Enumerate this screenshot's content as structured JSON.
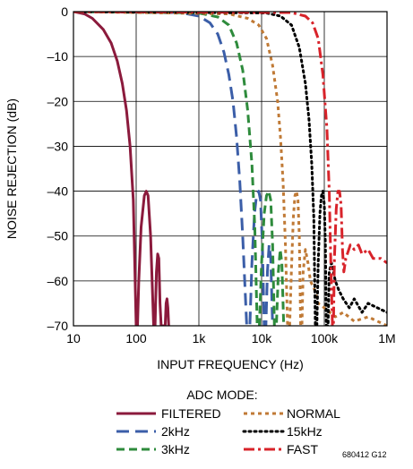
{
  "chart_data": {
    "type": "line",
    "xlabel": "INPUT FREQUENCY (Hz)",
    "ylabel": "NOISE REJECTION (dB)",
    "xscale": "log",
    "xlim": [
      10,
      1000000
    ],
    "ylim": [
      -70,
      0
    ],
    "grid": true,
    "x_tick_values": [
      10,
      100,
      1000,
      10000,
      100000,
      1000000
    ],
    "x_tick_labels": [
      "10",
      "100",
      "1k",
      "10k",
      "100k",
      "1M"
    ],
    "y_tick_values": [
      0,
      -10,
      -20,
      -30,
      -40,
      -50,
      -60,
      -70
    ],
    "y_tick_labels": [
      "0",
      "–10",
      "–20",
      "–30",
      "–40",
      "–50",
      "–60",
      "–70"
    ],
    "legend_title": "ADC MODE:",
    "legend_placement": "bottom",
    "figure_code": "680412 G12",
    "series": [
      {
        "name": "FILTERED",
        "color": "#8b1a3c",
        "dash": "solid",
        "points": [
          [
            10,
            0
          ],
          [
            15,
            -0.5
          ],
          [
            20,
            -1.5
          ],
          [
            30,
            -4
          ],
          [
            40,
            -7
          ],
          [
            50,
            -11
          ],
          [
            60,
            -16
          ],
          [
            70,
            -22
          ],
          [
            80,
            -30
          ],
          [
            90,
            -42
          ],
          [
            100,
            -70
          ],
          [
            105,
            -70
          ],
          [
            110,
            -60
          ],
          [
            120,
            -48
          ],
          [
            135,
            -41
          ],
          [
            145,
            -40
          ],
          [
            155,
            -41
          ],
          [
            170,
            -50
          ],
          [
            190,
            -70
          ],
          [
            200,
            -70
          ],
          [
            210,
            -58
          ],
          [
            220,
            -54
          ],
          [
            230,
            -55
          ],
          [
            240,
            -65
          ],
          [
            250,
            -70
          ],
          [
            290,
            -70
          ],
          [
            300,
            -65
          ],
          [
            310,
            -64
          ],
          [
            320,
            -66
          ],
          [
            330,
            -70
          ]
        ]
      },
      {
        "name": "2kHz",
        "color": "#3b5ea8",
        "dash": "long",
        "points": [
          [
            10,
            0
          ],
          [
            500,
            -0.2
          ],
          [
            1000,
            -1
          ],
          [
            1500,
            -2.5
          ],
          [
            2000,
            -5
          ],
          [
            2500,
            -9
          ],
          [
            3000,
            -14
          ],
          [
            3500,
            -20
          ],
          [
            4000,
            -28
          ],
          [
            4500,
            -38
          ],
          [
            5000,
            -50
          ],
          [
            5800,
            -70
          ],
          [
            6500,
            -70
          ],
          [
            7000,
            -56
          ],
          [
            7700,
            -45
          ],
          [
            8300,
            -41
          ],
          [
            9000,
            -40
          ],
          [
            9600,
            -42
          ],
          [
            10300,
            -52
          ],
          [
            11000,
            -70
          ],
          [
            11700,
            -70
          ],
          [
            12400,
            -58
          ],
          [
            13200,
            -52
          ],
          [
            14000,
            -55
          ],
          [
            15000,
            -70
          ]
        ]
      },
      {
        "name": "3kHz",
        "color": "#2e8b3c",
        "dash": "medium",
        "points": [
          [
            10,
            0
          ],
          [
            1000,
            -0.3
          ],
          [
            2000,
            -1.2
          ],
          [
            3000,
            -3
          ],
          [
            4000,
            -7
          ],
          [
            5000,
            -13
          ],
          [
            6000,
            -22
          ],
          [
            7000,
            -34
          ],
          [
            7800,
            -48
          ],
          [
            8500,
            -70
          ],
          [
            9200,
            -70
          ],
          [
            10000,
            -56
          ],
          [
            11000,
            -45
          ],
          [
            12000,
            -41
          ],
          [
            13000,
            -40
          ],
          [
            14000,
            -42
          ],
          [
            15000,
            -52
          ],
          [
            16000,
            -70
          ],
          [
            17200,
            -70
          ],
          [
            18500,
            -58
          ],
          [
            19800,
            -53
          ],
          [
            21000,
            -56
          ],
          [
            22500,
            -70
          ]
        ]
      },
      {
        "name": "NORMAL",
        "color": "#c07a36",
        "dash": "short",
        "points": [
          [
            10,
            0
          ],
          [
            3000,
            -0.5
          ],
          [
            6000,
            -1.5
          ],
          [
            9000,
            -3
          ],
          [
            12000,
            -6
          ],
          [
            15000,
            -12
          ],
          [
            18000,
            -20
          ],
          [
            20000,
            -28
          ],
          [
            22000,
            -38
          ],
          [
            24000,
            -52
          ],
          [
            26000,
            -70
          ],
          [
            28000,
            -70
          ],
          [
            30000,
            -57
          ],
          [
            32000,
            -46
          ],
          [
            34000,
            -41
          ],
          [
            36000,
            -40
          ],
          [
            38000,
            -42
          ],
          [
            40000,
            -50
          ],
          [
            42000,
            -70
          ],
          [
            44000,
            -70
          ],
          [
            46000,
            -58
          ],
          [
            50000,
            -53
          ],
          [
            55000,
            -56
          ],
          [
            60000,
            -60
          ],
          [
            70000,
            -62
          ],
          [
            80000,
            -65
          ],
          [
            100000,
            -66
          ],
          [
            150000,
            -68
          ],
          [
            200000,
            -67
          ],
          [
            300000,
            -69
          ],
          [
            500000,
            -68
          ],
          [
            1000000,
            -70
          ]
        ]
      },
      {
        "name": "15kHz",
        "color": "#000000",
        "dash": "dotted",
        "points": [
          [
            10,
            0
          ],
          [
            12000,
            -0.3
          ],
          [
            20000,
            -1
          ],
          [
            30000,
            -3
          ],
          [
            40000,
            -8
          ],
          [
            50000,
            -16
          ],
          [
            57000,
            -24
          ],
          [
            63000,
            -34
          ],
          [
            68000,
            -46
          ],
          [
            72000,
            -70
          ],
          [
            76000,
            -70
          ],
          [
            80000,
            -56
          ],
          [
            85000,
            -45
          ],
          [
            90000,
            -41
          ],
          [
            95000,
            -40
          ],
          [
            100000,
            -43
          ],
          [
            104000,
            -52
          ],
          [
            108000,
            -70
          ],
          [
            115000,
            -70
          ],
          [
            120000,
            -58
          ],
          [
            130000,
            -56
          ],
          [
            150000,
            -60
          ],
          [
            170000,
            -62
          ],
          [
            200000,
            -64
          ],
          [
            250000,
            -66
          ],
          [
            300000,
            -64
          ],
          [
            400000,
            -67
          ],
          [
            500000,
            -65
          ],
          [
            700000,
            -66
          ],
          [
            1000000,
            -67
          ]
        ]
      },
      {
        "name": "FAST",
        "color": "#d8232a",
        "dash": "dashdot",
        "points": [
          [
            10,
            0
          ],
          [
            30000,
            -0.2
          ],
          [
            50000,
            -1
          ],
          [
            65000,
            -2.5
          ],
          [
            80000,
            -6
          ],
          [
            95000,
            -14
          ],
          [
            110000,
            -26
          ],
          [
            120000,
            -40
          ],
          [
            128000,
            -58
          ],
          [
            135000,
            -70
          ],
          [
            140000,
            -70
          ],
          [
            145000,
            -55
          ],
          [
            155000,
            -44
          ],
          [
            165000,
            -40
          ],
          [
            175000,
            -40
          ],
          [
            185000,
            -43
          ],
          [
            195000,
            -53
          ],
          [
            205000,
            -58
          ],
          [
            220000,
            -55
          ],
          [
            260000,
            -52
          ],
          [
            300000,
            -53
          ],
          [
            350000,
            -52
          ],
          [
            400000,
            -54
          ],
          [
            500000,
            -53
          ],
          [
            600000,
            -55
          ],
          [
            800000,
            -55
          ],
          [
            1000000,
            -56
          ]
        ]
      }
    ]
  }
}
